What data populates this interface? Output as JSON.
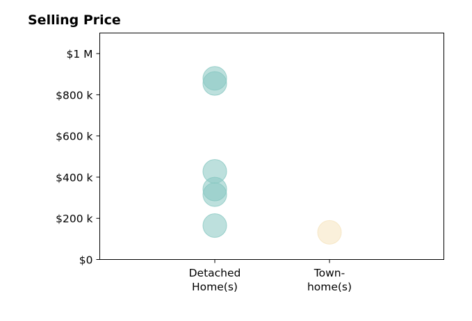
{
  "chart_data": {
    "type": "scatter",
    "title": "Selling Price",
    "xlabel": "",
    "ylabel": "",
    "categories": [
      "Detached\nHome(s)",
      "Town-\nhome(s)"
    ],
    "ylim": [
      0,
      1100000
    ],
    "yticks": [
      0,
      200000,
      400000,
      600000,
      800000,
      1000000
    ],
    "ytick_labels": [
      "$0",
      "$200 k",
      "$400 k",
      "$600 k",
      "$800 k",
      "$1 M"
    ],
    "grid": false,
    "series": [
      {
        "category": "Detached\nHome(s)",
        "color": "#86C7C1",
        "values": [
          880000,
          855000,
          428000,
          342000,
          315000,
          165000
        ]
      },
      {
        "category": "Town-\nhome(s)",
        "color": "#F5E4BE",
        "values": [
          132000
        ]
      }
    ]
  }
}
